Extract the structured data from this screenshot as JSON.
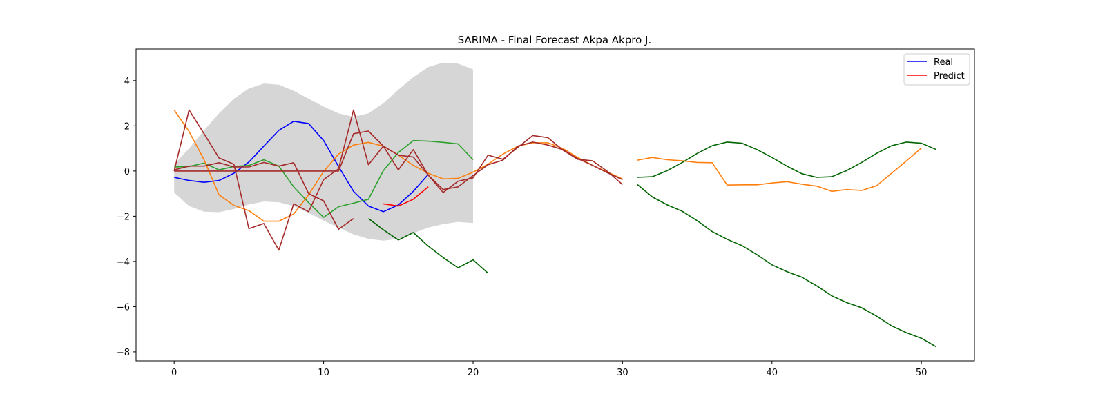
{
  "chart_data": {
    "type": "line",
    "title": "SARIMA - Final Forecast Akpa Akpro J.",
    "xlabel": "",
    "ylabel": "",
    "xlim": [
      -2.55,
      53.55
    ],
    "ylim": [
      -8.4,
      5.4
    ],
    "xticks": [
      0,
      10,
      20,
      30,
      40,
      50
    ],
    "yticks": [
      -8,
      -6,
      -4,
      -2,
      0,
      2,
      4
    ],
    "grid": false,
    "legend": {
      "position": "top-right",
      "entries": [
        {
          "label": "Real",
          "color": "#0000ff"
        },
        {
          "label": "Predict",
          "color": "#ff0000"
        }
      ]
    },
    "confidence_band": {
      "color": "#d6d6d6",
      "x": [
        0,
        1,
        2,
        3,
        4,
        5,
        6,
        7,
        8,
        9,
        10,
        11,
        12,
        13,
        14,
        15,
        16,
        17,
        18,
        19,
        20
      ],
      "upper": [
        0.3,
        1.0,
        1.8,
        2.55,
        3.2,
        3.65,
        3.87,
        3.82,
        3.55,
        3.2,
        2.85,
        2.55,
        2.4,
        2.55,
        3.0,
        3.6,
        4.15,
        4.6,
        4.8,
        4.75,
        4.5
      ],
      "lower": [
        -0.95,
        -1.55,
        -1.8,
        -1.82,
        -1.68,
        -1.48,
        -1.35,
        -1.38,
        -1.55,
        -1.85,
        -2.2,
        -2.5,
        -2.8,
        -3.0,
        -3.08,
        -3.0,
        -2.75,
        -2.5,
        -2.35,
        -2.25,
        -2.3
      ]
    },
    "series": [
      {
        "color": "#0000ff",
        "segments": [
          {
            "x": [
              0,
              1,
              2,
              3,
              4,
              5,
              6,
              7,
              8,
              9,
              10,
              11,
              12,
              13,
              14,
              15,
              16,
              17
            ],
            "y": [
              -0.28,
              -0.42,
              -0.5,
              -0.42,
              -0.1,
              0.4,
              1.1,
              1.8,
              2.2,
              2.1,
              1.35,
              0.2,
              -0.9,
              -1.55,
              -1.8,
              -1.5,
              -0.9,
              -0.15
            ]
          }
        ]
      },
      {
        "color": "#ff0000",
        "segments": [
          {
            "x": [
              14,
              15,
              16,
              17
            ],
            "y": [
              -1.45,
              -1.55,
              -1.25,
              -0.7
            ]
          }
        ]
      },
      {
        "color": "#2ca02c",
        "segments": [
          {
            "x": [
              0,
              1,
              2,
              3,
              4,
              5,
              6,
              7,
              8,
              9,
              10,
              11,
              12,
              13,
              14,
              15,
              16,
              17,
              18,
              19,
              20
            ],
            "y": [
              0.18,
              0.2,
              0.35,
              0.05,
              0.2,
              0.25,
              0.5,
              0.22,
              -0.7,
              -1.4,
              -2.05,
              -1.58,
              -1.42,
              -1.25,
              0.02,
              0.82,
              1.35,
              1.32,
              1.27,
              1.2,
              0.5
            ]
          }
        ]
      },
      {
        "color": "#006400",
        "segments": [
          {
            "x": [
              13,
              14,
              15,
              16,
              17,
              18,
              19,
              20,
              21
            ],
            "y": [
              -2.1,
              -2.6,
              -3.05,
              -2.72,
              -3.32,
              -3.83,
              -4.28,
              -3.93,
              -4.52
            ]
          },
          {
            "x": [
              31,
              32,
              33,
              34,
              35,
              36,
              37,
              38,
              39,
              40,
              41,
              42,
              43,
              44,
              45,
              46,
              47,
              48,
              49,
              50,
              51
            ],
            "y": [
              -0.28,
              -0.25,
              0.02,
              0.38,
              0.78,
              1.12,
              1.28,
              1.23,
              0.95,
              0.6,
              0.22,
              -0.12,
              -0.28,
              -0.25,
              0.02,
              0.38,
              0.78,
              1.12,
              1.28,
              1.23,
              0.95
            ]
          },
          {
            "x": [
              31,
              32,
              33,
              34,
              35,
              36,
              37,
              38,
              39,
              40,
              41,
              42,
              43,
              44,
              45,
              46,
              47,
              48,
              49,
              50,
              51
            ],
            "y": [
              -0.6,
              -1.15,
              -1.5,
              -1.78,
              -2.2,
              -2.68,
              -3.02,
              -3.3,
              -3.7,
              -4.15,
              -4.45,
              -4.7,
              -5.08,
              -5.52,
              -5.82,
              -6.05,
              -6.42,
              -6.85,
              -7.15,
              -7.4,
              -7.78
            ]
          }
        ]
      },
      {
        "color": "#ff7f0e",
        "segments": [
          {
            "x": [
              0,
              1,
              2,
              3,
              4,
              5,
              6,
              7,
              8,
              9,
              10,
              11,
              12,
              13,
              14,
              15,
              16,
              17,
              18,
              19,
              20,
              21,
              22,
              23,
              24,
              25,
              26,
              27,
              28,
              29,
              30
            ],
            "y": [
              2.7,
              1.75,
              0.5,
              -1.05,
              -1.52,
              -1.75,
              -2.22,
              -2.22,
              -1.9,
              -1.05,
              -0.02,
              0.75,
              1.15,
              1.27,
              1.1,
              0.7,
              0.25,
              -0.1,
              -0.35,
              -0.32,
              -0.05,
              0.3,
              0.75,
              1.1,
              1.25,
              1.25,
              1.0,
              0.6,
              0.25,
              -0.05,
              -0.35
            ]
          },
          {
            "x": [
              31,
              32,
              33,
              34,
              35,
              36,
              37,
              38,
              39,
              40,
              41,
              42,
              43,
              44,
              45,
              46,
              47,
              48,
              49,
              50
            ],
            "y": [
              0.48,
              0.6,
              0.5,
              0.45,
              0.38,
              0.37,
              -0.62,
              -0.61,
              -0.61,
              -0.53,
              -0.47,
              -0.58,
              -0.67,
              -0.9,
              -0.82,
              -0.86,
              -0.65,
              -0.1,
              0.45,
              1.02
            ]
          }
        ]
      },
      {
        "color": "#a52a2a",
        "segments": [
          {
            "x": [
              0,
              1,
              2,
              3,
              4,
              5,
              6,
              7,
              8,
              9,
              10,
              11,
              12,
              13,
              14,
              15,
              16,
              17,
              18,
              19,
              20,
              21,
              22,
              23,
              24,
              25,
              26,
              27,
              28,
              29,
              30
            ],
            "y": [
              0.0,
              0.0,
              0.0,
              0.0,
              0.0,
              0.0,
              0.0,
              0.0,
              0.0,
              0.0,
              0.0,
              0.0,
              1.65,
              1.77,
              1.1,
              0.7,
              0.62,
              -0.18,
              -0.82,
              -0.7,
              -0.2,
              0.28,
              0.48,
              1.1,
              1.28,
              1.15,
              0.95,
              0.55,
              0.25,
              -0.08,
              -0.38
            ]
          },
          {
            "x": [
              0,
              1,
              2,
              3,
              4,
              5,
              6,
              7,
              8,
              9,
              10,
              11,
              12,
              13,
              14,
              15,
              16,
              17,
              18,
              19,
              20,
              21,
              22,
              23,
              24,
              25,
              26,
              27,
              28,
              29,
              30
            ],
            "y": [
              0.0,
              2.7,
              1.65,
              0.58,
              0.3,
              -2.55,
              -2.32,
              -3.5,
              -1.45,
              -1.8,
              -0.38,
              0.1,
              2.7,
              0.28,
              1.1,
              0.05,
              0.95,
              -0.18,
              -0.95,
              -0.45,
              -0.3,
              0.7,
              0.52,
              1.05,
              1.57,
              1.48,
              0.93,
              0.52,
              0.45,
              -0.02,
              -0.6
            ]
          },
          {
            "x": [
              0,
              1,
              2,
              3,
              4,
              5,
              6,
              7,
              8,
              9,
              10,
              11,
              12
            ],
            "y": [
              0.05,
              0.22,
              0.22,
              0.37,
              0.18,
              0.18,
              0.38,
              0.22,
              0.37,
              -1.0,
              -1.32,
              -2.58,
              -2.1
            ]
          }
        ]
      }
    ]
  }
}
